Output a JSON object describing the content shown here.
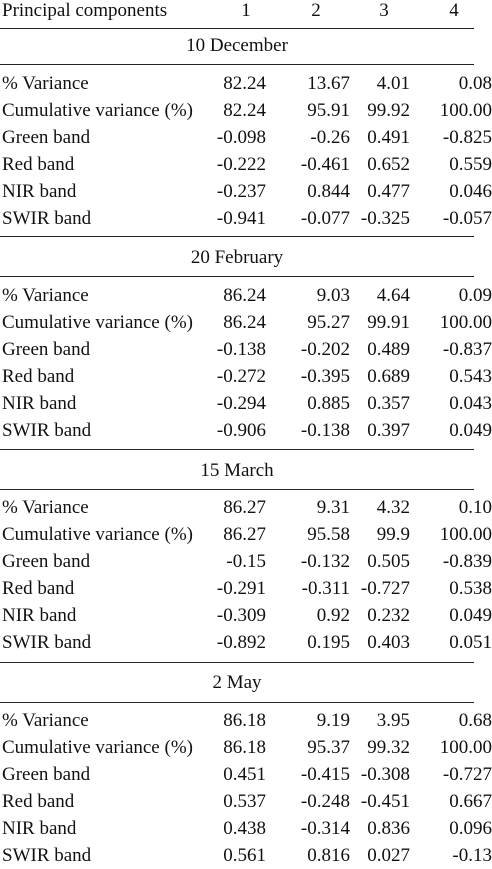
{
  "header": {
    "label": "Principal components",
    "cols": [
      "1",
      "2",
      "3",
      "4"
    ]
  },
  "sections": [
    {
      "title": "10 December",
      "rows": [
        {
          "label": "% Variance",
          "values": [
            "82.24",
            "13.67",
            "4.01",
            "0.08"
          ]
        },
        {
          "label": "Cumulative variance (%)",
          "values": [
            "82.24",
            "95.91",
            "99.92",
            "100.00"
          ]
        },
        {
          "label": "Green band",
          "values": [
            "-0.098",
            "-0.26",
            "0.491",
            "-0.825"
          ]
        },
        {
          "label": "Red band",
          "values": [
            "-0.222",
            "-0.461",
            "0.652",
            "0.559"
          ]
        },
        {
          "label": "NIR band",
          "values": [
            "-0.237",
            "0.844",
            "0.477",
            "0.046"
          ]
        },
        {
          "label": "SWIR band",
          "values": [
            "-0.941",
            "-0.077",
            "-0.325",
            "-0.057"
          ]
        }
      ]
    },
    {
      "title": "20 February",
      "rows": [
        {
          "label": "% Variance",
          "values": [
            "86.24",
            "9.03",
            "4.64",
            "0.09"
          ]
        },
        {
          "label": "Cumulative variance (%)",
          "values": [
            "86.24",
            "95.27",
            "99.91",
            "100.00"
          ]
        },
        {
          "label": "Green band",
          "values": [
            "-0.138",
            "-0.202",
            "0.489",
            "-0.837"
          ]
        },
        {
          "label": "Red band",
          "values": [
            "-0.272",
            "-0.395",
            "0.689",
            "0.543"
          ]
        },
        {
          "label": "NIR band",
          "values": [
            "-0.294",
            "0.885",
            "0.357",
            "0.043"
          ]
        },
        {
          "label": "SWIR band",
          "values": [
            "-0.906",
            "-0.138",
            "0.397",
            "0.049"
          ]
        }
      ]
    },
    {
      "title": "15 March",
      "rows": [
        {
          "label": "% Variance",
          "values": [
            "86.27",
            "9.31",
            "4.32",
            "0.10"
          ]
        },
        {
          "label": "Cumulative variance (%)",
          "values": [
            "86.27",
            "95.58",
            "99.9",
            "100.00"
          ]
        },
        {
          "label": "Green band",
          "values": [
            "-0.15",
            "-0.132",
            "0.505",
            "-0.839"
          ]
        },
        {
          "label": "Red band",
          "values": [
            "-0.291",
            "-0.311",
            "-0.727",
            "0.538"
          ]
        },
        {
          "label": "NIR band",
          "values": [
            "-0.309",
            "0.92",
            "0.232",
            "0.049"
          ]
        },
        {
          "label": "SWIR band",
          "values": [
            "-0.892",
            "0.195",
            "0.403",
            "0.051"
          ]
        }
      ]
    },
    {
      "title": "2 May",
      "rows": [
        {
          "label": "% Variance",
          "values": [
            "86.18",
            "9.19",
            "3.95",
            "0.68"
          ]
        },
        {
          "label": "Cumulative variance (%)",
          "values": [
            "86.18",
            "95.37",
            "99.32",
            "100.00"
          ]
        },
        {
          "label": "Green band",
          "values": [
            "0.451",
            "-0.415",
            "-0.308",
            "-0.727"
          ]
        },
        {
          "label": "Red band",
          "values": [
            "0.537",
            "-0.248",
            "-0.451",
            "0.667"
          ]
        },
        {
          "label": "NIR band",
          "values": [
            "0.438",
            "-0.314",
            "0.836",
            "0.096"
          ]
        },
        {
          "label": "SWIR band",
          "values": [
            "0.561",
            "0.816",
            "0.027",
            "-0.13"
          ]
        }
      ]
    }
  ]
}
